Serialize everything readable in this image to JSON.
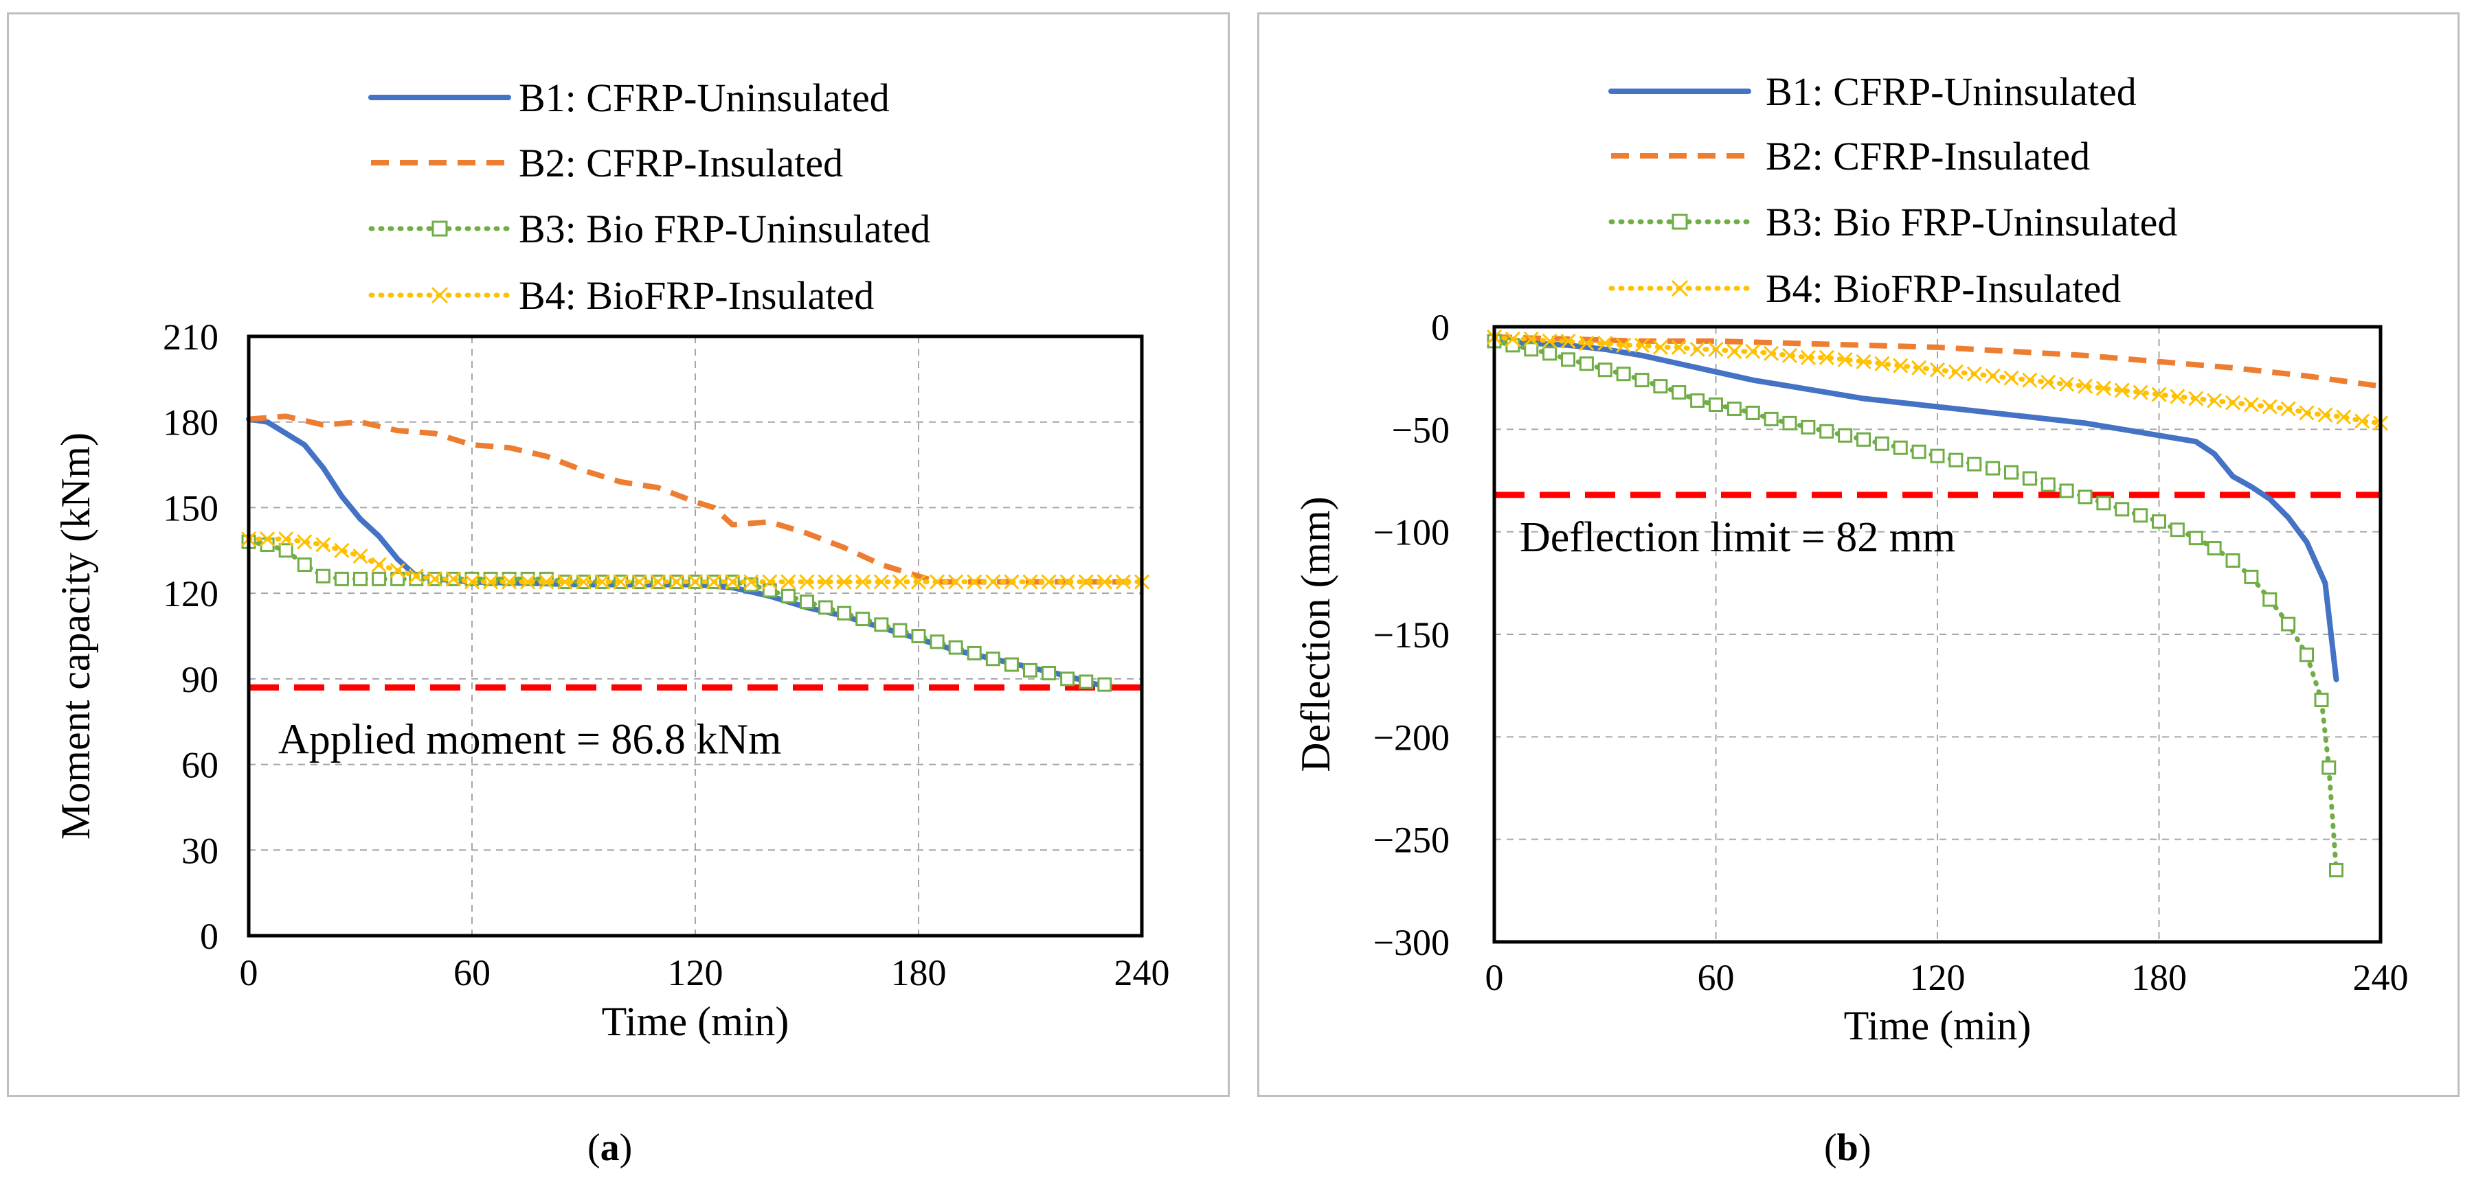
{
  "captions": [
    {
      "open": "(",
      "letter": "a",
      "close": ")"
    },
    {
      "open": "(",
      "letter": "b",
      "close": ")"
    }
  ],
  "colors": {
    "B1": "#4472C4",
    "B2": "#ED7D31",
    "B3": "#70AD47",
    "B4": "#FFC000",
    "limit": "#FF0000",
    "grid": "#a6a6a6"
  },
  "chart_data": [
    {
      "type": "line",
      "title": "",
      "xlabel": "Time (min)",
      "ylabel": "Moment capacity (kNm)",
      "xlim": [
        0,
        240
      ],
      "ylim": [
        0,
        210
      ],
      "xticks": [
        0,
        60,
        120,
        180,
        240
      ],
      "yticks": [
        0,
        30,
        60,
        90,
        120,
        150,
        180,
        210
      ],
      "grid": true,
      "legend_position": "top",
      "series": [
        {
          "name": "B1: CFRP-Uninsulated",
          "key": "B1",
          "style": "solid",
          "x": [
            0,
            5,
            10,
            15,
            20,
            25,
            30,
            35,
            40,
            45,
            50,
            60,
            90,
            120,
            130,
            140,
            150,
            160,
            170,
            180,
            190,
            200,
            210,
            220,
            228
          ],
          "y": [
            181,
            180,
            176,
            172,
            164,
            154,
            146,
            140,
            132,
            126,
            125,
            124,
            123,
            123,
            122,
            119,
            115,
            112,
            108,
            104,
            100,
            97,
            94,
            91,
            88
          ]
        },
        {
          "name": "B2: CFRP-Insulated",
          "key": "B2",
          "style": "dash",
          "x": [
            0,
            10,
            20,
            30,
            40,
            50,
            60,
            70,
            80,
            90,
            100,
            110,
            120,
            125,
            130,
            140,
            150,
            160,
            170,
            180,
            185,
            200,
            220,
            240
          ],
          "y": [
            181,
            182,
            179,
            180,
            177,
            176,
            172,
            171,
            168,
            163,
            159,
            157,
            152,
            150,
            144,
            145,
            141,
            136,
            130,
            126,
            124,
            124,
            124,
            124
          ]
        },
        {
          "name": "B3: Bio FRP-Uninsulated",
          "key": "B3",
          "style": "dot-square",
          "x": [
            0,
            5,
            10,
            15,
            20,
            25,
            30,
            35,
            40,
            45,
            50,
            55,
            60,
            65,
            70,
            75,
            80,
            85,
            90,
            95,
            100,
            105,
            110,
            115,
            120,
            125,
            130,
            135,
            140,
            145,
            150,
            155,
            160,
            165,
            170,
            175,
            180,
            185,
            190,
            195,
            200,
            205,
            210,
            215,
            220,
            225,
            230
          ],
          "y": [
            138,
            137,
            135,
            130,
            126,
            125,
            125,
            125,
            125,
            125,
            125,
            125,
            125,
            125,
            125,
            125,
            125,
            124,
            124,
            124,
            124,
            124,
            124,
            124,
            124,
            124,
            124,
            123,
            121,
            119,
            117,
            115,
            113,
            111,
            109,
            107,
            105,
            103,
            101,
            99,
            97,
            95,
            93,
            92,
            90,
            89,
            88
          ]
        },
        {
          "name": "B4: BioFRP-Insulated",
          "key": "B4",
          "style": "dot-x",
          "x": [
            0,
            5,
            10,
            15,
            20,
            25,
            30,
            35,
            40,
            45,
            50,
            55,
            60,
            65,
            70,
            75,
            80,
            85,
            90,
            95,
            100,
            105,
            110,
            115,
            120,
            125,
            130,
            135,
            140,
            145,
            150,
            155,
            160,
            165,
            170,
            175,
            180,
            185,
            190,
            195,
            200,
            205,
            210,
            215,
            220,
            225,
            230,
            235,
            240
          ],
          "y": [
            139,
            139,
            139,
            138,
            137,
            135,
            133,
            130,
            128,
            126,
            125,
            125,
            124,
            124,
            124,
            124,
            124,
            124,
            124,
            124,
            124,
            124,
            124,
            124,
            124,
            124,
            124,
            124,
            124,
            124,
            124,
            124,
            124,
            124,
            124,
            124,
            124,
            124,
            124,
            124,
            124,
            124,
            124,
            124,
            124,
            124,
            124,
            124,
            124
          ]
        }
      ],
      "reference_line": {
        "y": 87,
        "label": "Applied moment = 86.8 kNm"
      }
    },
    {
      "type": "line",
      "title": "",
      "xlabel": "Time (min)",
      "ylabel": "Deflection (mm)",
      "xlim": [
        0,
        240
      ],
      "ylim": [
        -300,
        0
      ],
      "xticks": [
        0,
        60,
        120,
        180,
        240
      ],
      "yticks": [
        -300,
        -250,
        -200,
        -150,
        -100,
        -50,
        0
      ],
      "grid": true,
      "legend_position": "top",
      "series": [
        {
          "name": "B1: CFRP-Uninsulated",
          "key": "B1",
          "style": "solid",
          "x": [
            0,
            10,
            20,
            30,
            40,
            50,
            60,
            70,
            80,
            90,
            100,
            110,
            120,
            130,
            140,
            150,
            160,
            170,
            180,
            190,
            195,
            200,
            205,
            210,
            215,
            220,
            225,
            228
          ],
          "y": [
            -7,
            -8,
            -9,
            -11,
            -14,
            -18,
            -22,
            -26,
            -29,
            -32,
            -35,
            -37,
            -39,
            -41,
            -43,
            -45,
            -47,
            -50,
            -53,
            -56,
            -62,
            -73,
            -78,
            -84,
            -93,
            -105,
            -125,
            -172
          ]
        },
        {
          "name": "B2: CFRP-Insulated",
          "key": "B2",
          "style": "dash",
          "x": [
            0,
            20,
            40,
            60,
            80,
            100,
            120,
            140,
            160,
            180,
            200,
            220,
            240
          ],
          "y": [
            -5,
            -6,
            -7,
            -7,
            -8,
            -9,
            -10,
            -12,
            -14,
            -17,
            -20,
            -24,
            -29
          ]
        },
        {
          "name": "B3: Bio FRP-Uninsulated",
          "key": "B3",
          "style": "dot-square",
          "x": [
            0,
            5,
            10,
            15,
            20,
            25,
            30,
            35,
            40,
            45,
            50,
            55,
            60,
            65,
            70,
            75,
            80,
            85,
            90,
            95,
            100,
            105,
            110,
            115,
            120,
            125,
            130,
            135,
            140,
            145,
            150,
            155,
            160,
            165,
            170,
            175,
            180,
            185,
            190,
            195,
            200,
            205,
            210,
            215,
            220,
            224,
            226,
            228
          ],
          "y": [
            -7,
            -9,
            -11,
            -13,
            -16,
            -18,
            -21,
            -23,
            -26,
            -29,
            -32,
            -36,
            -38,
            -40,
            -42,
            -45,
            -47,
            -49,
            -51,
            -53,
            -55,
            -57,
            -59,
            -61,
            -63,
            -65,
            -67,
            -69,
            -71,
            -74,
            -77,
            -80,
            -83,
            -86,
            -89,
            -92,
            -95,
            -99,
            -103,
            -108,
            -114,
            -122,
            -133,
            -145,
            -160,
            -182,
            -215,
            -265
          ]
        },
        {
          "name": "B4: BioFRP-Insulated",
          "key": "B4",
          "style": "dot-x",
          "x": [
            0,
            5,
            10,
            15,
            20,
            25,
            30,
            35,
            40,
            45,
            50,
            55,
            60,
            65,
            70,
            75,
            80,
            85,
            90,
            95,
            100,
            105,
            110,
            115,
            120,
            125,
            130,
            135,
            140,
            145,
            150,
            155,
            160,
            165,
            170,
            175,
            180,
            185,
            190,
            195,
            200,
            205,
            210,
            215,
            220,
            225,
            230,
            235,
            240
          ],
          "y": [
            -5,
            -6,
            -6,
            -7,
            -7,
            -8,
            -8,
            -9,
            -9,
            -10,
            -10,
            -11,
            -11,
            -12,
            -12,
            -13,
            -14,
            -15,
            -15,
            -16,
            -17,
            -18,
            -19,
            -20,
            -21,
            -22,
            -23,
            -24,
            -25,
            -26,
            -27,
            -28,
            -29,
            -30,
            -31,
            -32,
            -33,
            -34,
            -35,
            -36,
            -37,
            -38,
            -39,
            -40,
            -42,
            -43,
            -44,
            -46,
            -47
          ]
        }
      ],
      "reference_line": {
        "y": -82,
        "label": "Deflection limit = 82 mm"
      }
    }
  ]
}
